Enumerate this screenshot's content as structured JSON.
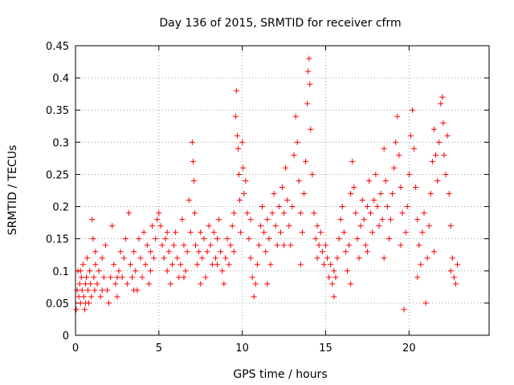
{
  "chart_data": {
    "type": "scatter",
    "title": "Day 136 of 2015, SRMTID for receiver cfrm",
    "xlabel": "GPS time / hours",
    "ylabel": "SRMTID / TECUs",
    "xlim": [
      0,
      24.8
    ],
    "ylim": [
      0,
      0.45
    ],
    "xticks": [
      0,
      5,
      10,
      15,
      20
    ],
    "xtick_labels": [
      "0",
      "5",
      "10",
      "15",
      "20"
    ],
    "yticks": [
      0,
      0.05,
      0.1,
      0.15,
      0.2,
      0.25,
      0.3,
      0.35,
      0.4,
      0.45
    ],
    "ytick_labels": [
      "0",
      "0.05",
      "0.1",
      "0.15",
      "0.2",
      "0.25",
      "0.3",
      "0.35",
      "0.4",
      "0.45"
    ],
    "grid": true,
    "marker": "+",
    "color": "#ff0000",
    "series": [
      {
        "name": "SRMTID",
        "points": [
          [
            0.05,
            0.04
          ],
          [
            0.1,
            0.07
          ],
          [
            0.15,
            0.1
          ],
          [
            0.2,
            0.06
          ],
          [
            0.25,
            0.08
          ],
          [
            0.3,
            0.05
          ],
          [
            0.35,
            0.09
          ],
          [
            0.4,
            0.07
          ],
          [
            0.45,
            0.11
          ],
          [
            0.5,
            0.06
          ],
          [
            0.55,
            0.04
          ],
          [
            0.6,
            0.08
          ],
          [
            0.65,
            0.09
          ],
          [
            0.7,
            0.12
          ],
          [
            0.75,
            0.07
          ],
          [
            0.8,
            0.05
          ],
          [
            0.85,
            0.1
          ],
          [
            0.9,
            0.08
          ],
          [
            0.95,
            0.06
          ],
          [
            1.0,
            0.18
          ],
          [
            1.05,
            0.15
          ],
          [
            1.1,
            0.09
          ],
          [
            1.15,
            0.07
          ],
          [
            1.2,
            0.11
          ],
          [
            1.3,
            0.08
          ],
          [
            1.4,
            0.1
          ],
          [
            1.5,
            0.06
          ],
          [
            1.6,
            0.12
          ],
          [
            1.7,
            0.09
          ],
          [
            1.8,
            0.14
          ],
          [
            1.9,
            0.07
          ],
          [
            2.0,
            0.05
          ],
          [
            2.1,
            0.09
          ],
          [
            2.2,
            0.17
          ],
          [
            2.3,
            0.11
          ],
          [
            2.4,
            0.08
          ],
          [
            2.5,
            0.06
          ],
          [
            2.6,
            0.1
          ],
          [
            2.7,
            0.13
          ],
          [
            2.8,
            0.09
          ],
          [
            2.9,
            0.12
          ],
          [
            3.0,
            0.15
          ],
          [
            3.1,
            0.08
          ],
          [
            3.2,
            0.19
          ],
          [
            3.3,
            0.11
          ],
          [
            3.4,
            0.09
          ],
          [
            3.5,
            0.13
          ],
          [
            3.6,
            0.1
          ],
          [
            3.7,
            0.07
          ],
          [
            3.8,
            0.15
          ],
          [
            3.9,
            0.12
          ],
          [
            4.0,
            0.09
          ],
          [
            4.1,
            0.16
          ],
          [
            4.2,
            0.11
          ],
          [
            4.3,
            0.14
          ],
          [
            4.4,
            0.08
          ],
          [
            4.5,
            0.13
          ],
          [
            4.6,
            0.17
          ],
          [
            4.7,
            0.12
          ],
          [
            4.8,
            0.15
          ],
          [
            4.9,
            0.18
          ],
          [
            5.0,
            0.19
          ],
          [
            5.1,
            0.17
          ],
          [
            5.2,
            0.14
          ],
          [
            5.3,
            0.12
          ],
          [
            5.4,
            0.15
          ],
          [
            5.5,
            0.1
          ],
          [
            5.6,
            0.13
          ],
          [
            5.7,
            0.08
          ],
          [
            5.8,
            0.11
          ],
          [
            5.9,
            0.14
          ],
          [
            6.0,
            0.16
          ],
          [
            6.1,
            0.12
          ],
          [
            6.2,
            0.09
          ],
          [
            6.3,
            0.11
          ],
          [
            6.4,
            0.18
          ],
          [
            6.5,
            0.14
          ],
          [
            6.6,
            0.1
          ],
          [
            6.7,
            0.13
          ],
          [
            6.8,
            0.21
          ],
          [
            6.9,
            0.16
          ],
          [
            7.0,
            0.3
          ],
          [
            7.05,
            0.27
          ],
          [
            7.1,
            0.24
          ],
          [
            7.15,
            0.19
          ],
          [
            7.2,
            0.14
          ],
          [
            7.3,
            0.11
          ],
          [
            7.4,
            0.13
          ],
          [
            7.5,
            0.16
          ],
          [
            7.6,
            0.12
          ],
          [
            7.7,
            0.15
          ],
          [
            7.8,
            0.09
          ],
          [
            7.9,
            0.13
          ],
          [
            8.0,
            0.17
          ],
          [
            8.1,
            0.14
          ],
          [
            8.2,
            0.11
          ],
          [
            8.3,
            0.16
          ],
          [
            8.4,
            0.12
          ],
          [
            8.5,
            0.15
          ],
          [
            8.6,
            0.18
          ],
          [
            8.7,
            0.13
          ],
          [
            8.8,
            0.1
          ],
          [
            8.9,
            0.08
          ],
          [
            9.0,
            0.12
          ],
          [
            9.1,
            0.15
          ],
          [
            9.2,
            0.11
          ],
          [
            9.3,
            0.14
          ],
          [
            9.4,
            0.17
          ],
          [
            9.5,
            0.19
          ],
          [
            9.6,
            0.34
          ],
          [
            9.65,
            0.38
          ],
          [
            9.7,
            0.31
          ],
          [
            9.75,
            0.29
          ],
          [
            9.8,
            0.25
          ],
          [
            9.85,
            0.21
          ],
          [
            9.9,
            0.16
          ],
          [
            10.0,
            0.3
          ],
          [
            10.05,
            0.26
          ],
          [
            10.1,
            0.22
          ],
          [
            10.2,
            0.24
          ],
          [
            10.3,
            0.19
          ],
          [
            10.4,
            0.15
          ],
          [
            10.5,
            0.12
          ],
          [
            10.6,
            0.09
          ],
          [
            10.7,
            0.06
          ],
          [
            10.8,
            0.08
          ],
          [
            10.9,
            0.11
          ],
          [
            11.0,
            0.14
          ],
          [
            11.1,
            0.17
          ],
          [
            11.2,
            0.2
          ],
          [
            11.3,
            0.16
          ],
          [
            11.4,
            0.13
          ],
          [
            11.5,
            0.18
          ],
          [
            11.6,
            0.15
          ],
          [
            11.7,
            0.11
          ],
          [
            11.8,
            0.19
          ],
          [
            11.9,
            0.22
          ],
          [
            12.0,
            0.17
          ],
          [
            12.1,
            0.14
          ],
          [
            12.2,
            0.2
          ],
          [
            12.3,
            0.16
          ],
          [
            12.4,
            0.23
          ],
          [
            12.5,
            0.19
          ],
          [
            12.6,
            0.26
          ],
          [
            12.7,
            0.21
          ],
          [
            12.8,
            0.17
          ],
          [
            12.9,
            0.14
          ],
          [
            13.0,
            0.2
          ],
          [
            13.1,
            0.28
          ],
          [
            13.2,
            0.34
          ],
          [
            13.3,
            0.3
          ],
          [
            13.4,
            0.24
          ],
          [
            13.5,
            0.19
          ],
          [
            13.6,
            0.16
          ],
          [
            13.7,
            0.22
          ],
          [
            13.8,
            0.27
          ],
          [
            13.9,
            0.36
          ],
          [
            13.95,
            0.41
          ],
          [
            14.0,
            0.43
          ],
          [
            14.05,
            0.39
          ],
          [
            14.1,
            0.32
          ],
          [
            14.2,
            0.25
          ],
          [
            14.3,
            0.19
          ],
          [
            14.4,
            0.15
          ],
          [
            14.5,
            0.12
          ],
          [
            14.6,
            0.14
          ],
          [
            14.7,
            0.16
          ],
          [
            14.8,
            0.13
          ],
          [
            14.9,
            0.11
          ],
          [
            15.0,
            0.14
          ],
          [
            15.1,
            0.12
          ],
          [
            15.2,
            0.09
          ],
          [
            15.3,
            0.11
          ],
          [
            15.4,
            0.08
          ],
          [
            15.5,
            0.06
          ],
          [
            15.6,
            0.09
          ],
          [
            15.7,
            0.12
          ],
          [
            15.8,
            0.15
          ],
          [
            15.9,
            0.18
          ],
          [
            16.0,
            0.2
          ],
          [
            16.1,
            0.16
          ],
          [
            16.2,
            0.13
          ],
          [
            16.3,
            0.1
          ],
          [
            16.4,
            0.14
          ],
          [
            16.5,
            0.22
          ],
          [
            16.6,
            0.27
          ],
          [
            16.7,
            0.23
          ],
          [
            16.8,
            0.19
          ],
          [
            16.9,
            0.15
          ],
          [
            17.0,
            0.12
          ],
          [
            17.1,
            0.17
          ],
          [
            17.2,
            0.21
          ],
          [
            17.3,
            0.18
          ],
          [
            17.4,
            0.14
          ],
          [
            17.5,
            0.2
          ],
          [
            17.6,
            0.24
          ],
          [
            17.7,
            0.19
          ],
          [
            17.8,
            0.16
          ],
          [
            17.9,
            0.21
          ],
          [
            18.0,
            0.25
          ],
          [
            18.1,
            0.2
          ],
          [
            18.2,
            0.17
          ],
          [
            18.3,
            0.22
          ],
          [
            18.4,
            0.18
          ],
          [
            18.5,
            0.29
          ],
          [
            18.6,
            0.24
          ],
          [
            18.7,
            0.2
          ],
          [
            18.8,
            0.15
          ],
          [
            18.9,
            0.18
          ],
          [
            19.0,
            0.22
          ],
          [
            19.1,
            0.26
          ],
          [
            19.2,
            0.3
          ],
          [
            19.3,
            0.34
          ],
          [
            19.4,
            0.28
          ],
          [
            19.5,
            0.23
          ],
          [
            19.6,
            0.19
          ],
          [
            19.7,
            0.04
          ],
          [
            19.8,
            0.16
          ],
          [
            19.9,
            0.2
          ],
          [
            20.0,
            0.25
          ],
          [
            20.1,
            0.31
          ],
          [
            20.2,
            0.35
          ],
          [
            20.3,
            0.29
          ],
          [
            20.4,
            0.23
          ],
          [
            20.5,
            0.18
          ],
          [
            20.6,
            0.14
          ],
          [
            20.7,
            0.11
          ],
          [
            20.8,
            0.16
          ],
          [
            20.9,
            0.19
          ],
          [
            21.0,
            0.05
          ],
          [
            21.1,
            0.12
          ],
          [
            21.2,
            0.17
          ],
          [
            21.3,
            0.22
          ],
          [
            21.4,
            0.27
          ],
          [
            21.5,
            0.32
          ],
          [
            21.6,
            0.28
          ],
          [
            21.7,
            0.24
          ],
          [
            21.8,
            0.3
          ],
          [
            21.9,
            0.36
          ],
          [
            22.0,
            0.37
          ],
          [
            22.05,
            0.33
          ],
          [
            22.1,
            0.28
          ],
          [
            22.2,
            0.25
          ],
          [
            22.3,
            0.31
          ],
          [
            22.4,
            0.22
          ],
          [
            22.5,
            0.17
          ],
          [
            22.6,
            0.12
          ],
          [
            22.7,
            0.09
          ],
          [
            22.8,
            0.08
          ],
          [
            22.9,
            0.11
          ],
          [
            0.3,
            0.1
          ],
          [
            0.6,
            0.05
          ],
          [
            1.2,
            0.13
          ],
          [
            1.6,
            0.07
          ],
          [
            2.5,
            0.09
          ],
          [
            3.5,
            0.07
          ],
          [
            4.5,
            0.1
          ],
          [
            5.5,
            0.16
          ],
          [
            6.5,
            0.09
          ],
          [
            7.5,
            0.08
          ],
          [
            8.5,
            0.11
          ],
          [
            9.5,
            0.13
          ],
          [
            10.5,
            0.18
          ],
          [
            11.5,
            0.08
          ],
          [
            12.5,
            0.14
          ],
          [
            13.5,
            0.11
          ],
          [
            14.5,
            0.17
          ],
          [
            15.5,
            0.1
          ],
          [
            16.5,
            0.08
          ],
          [
            17.5,
            0.13
          ],
          [
            18.5,
            0.12
          ],
          [
            19.5,
            0.14
          ],
          [
            20.5,
            0.09
          ],
          [
            21.5,
            0.13
          ],
          [
            22.5,
            0.1
          ]
        ]
      }
    ]
  }
}
